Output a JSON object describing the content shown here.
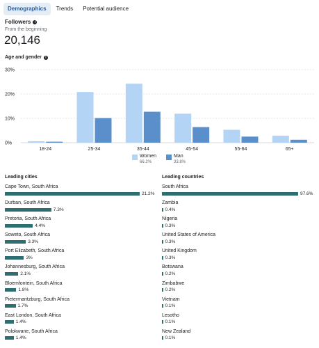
{
  "tabs": [
    {
      "label": "Demographics",
      "active": true
    },
    {
      "label": "Trends",
      "active": false
    },
    {
      "label": "Potential audience",
      "active": false
    }
  ],
  "followers": {
    "title": "Followers",
    "subtitle": "From the beginning",
    "count": "20,146"
  },
  "age_gender": {
    "title": "Age and gender"
  },
  "colors": {
    "women": "#b3d4f5",
    "man": "#5b8fcc",
    "bar_teal": "#2d6e70",
    "grid": "#c7cbd1"
  },
  "chart_data": {
    "type": "bar",
    "categories": [
      "18-24",
      "25-34",
      "35-44",
      "45-54",
      "55-64",
      "65+"
    ],
    "series": [
      {
        "name": "Women",
        "values": [
          0.6,
          20.8,
          24.2,
          11.9,
          5.3,
          2.9
        ]
      },
      {
        "name": "Man",
        "values": [
          0.4,
          10.1,
          12.7,
          6.4,
          2.5,
          1.2
        ]
      }
    ],
    "yticks": [
      "30%",
      "20%",
      "10%",
      "0%"
    ],
    "ylim": [
      0,
      30
    ],
    "grid": true,
    "legend_position": "bottom-center"
  },
  "legend": [
    {
      "name": "Women",
      "pct": "66.2%"
    },
    {
      "name": "Man",
      "pct": "33.8%"
    }
  ],
  "leading_cities": {
    "title": "Leading cities",
    "items": [
      {
        "label": "Cape Town, South Africa",
        "pct": "21.2%",
        "value": 21.2
      },
      {
        "label": "Durban, South Africa",
        "pct": "7.3%",
        "value": 7.3
      },
      {
        "label": "Pretoria, South Africa",
        "pct": "4.4%",
        "value": 4.4
      },
      {
        "label": "Soweto, South Africa",
        "pct": "3.3%",
        "value": 3.3
      },
      {
        "label": "Port Elizabeth, South Africa",
        "pct": "3%",
        "value": 3.0
      },
      {
        "label": "Johannesburg, South Africa",
        "pct": "2.1%",
        "value": 2.1
      },
      {
        "label": "Bloemfontein, South Africa",
        "pct": "1.8%",
        "value": 1.8
      },
      {
        "label": "Pietermaritzburg, South Africa",
        "pct": "1.7%",
        "value": 1.7
      },
      {
        "label": "East London, South Africa",
        "pct": "1.4%",
        "value": 1.4
      },
      {
        "label": "Polokwane, South Africa",
        "pct": "1.4%",
        "value": 1.4
      }
    ]
  },
  "leading_countries": {
    "title": "Leading countries",
    "items": [
      {
        "label": "South Africa",
        "pct": "97.6%",
        "value": 97.6
      },
      {
        "label": "Zambia",
        "pct": "0.4%",
        "value": 0.4
      },
      {
        "label": "Nigeria",
        "pct": "0.3%",
        "value": 0.3
      },
      {
        "label": "United States of America",
        "pct": "0.3%",
        "value": 0.3
      },
      {
        "label": "United Kingdom",
        "pct": "0.3%",
        "value": 0.3
      },
      {
        "label": "Botswana",
        "pct": "0.2%",
        "value": 0.2
      },
      {
        "label": "Zimbabwe",
        "pct": "0.2%",
        "value": 0.2
      },
      {
        "label": "Vietnam",
        "pct": "0.1%",
        "value": 0.1
      },
      {
        "label": "Lesotho",
        "pct": "0.1%",
        "value": 0.1
      },
      {
        "label": "New Zealand",
        "pct": "0.1%",
        "value": 0.1
      }
    ]
  }
}
